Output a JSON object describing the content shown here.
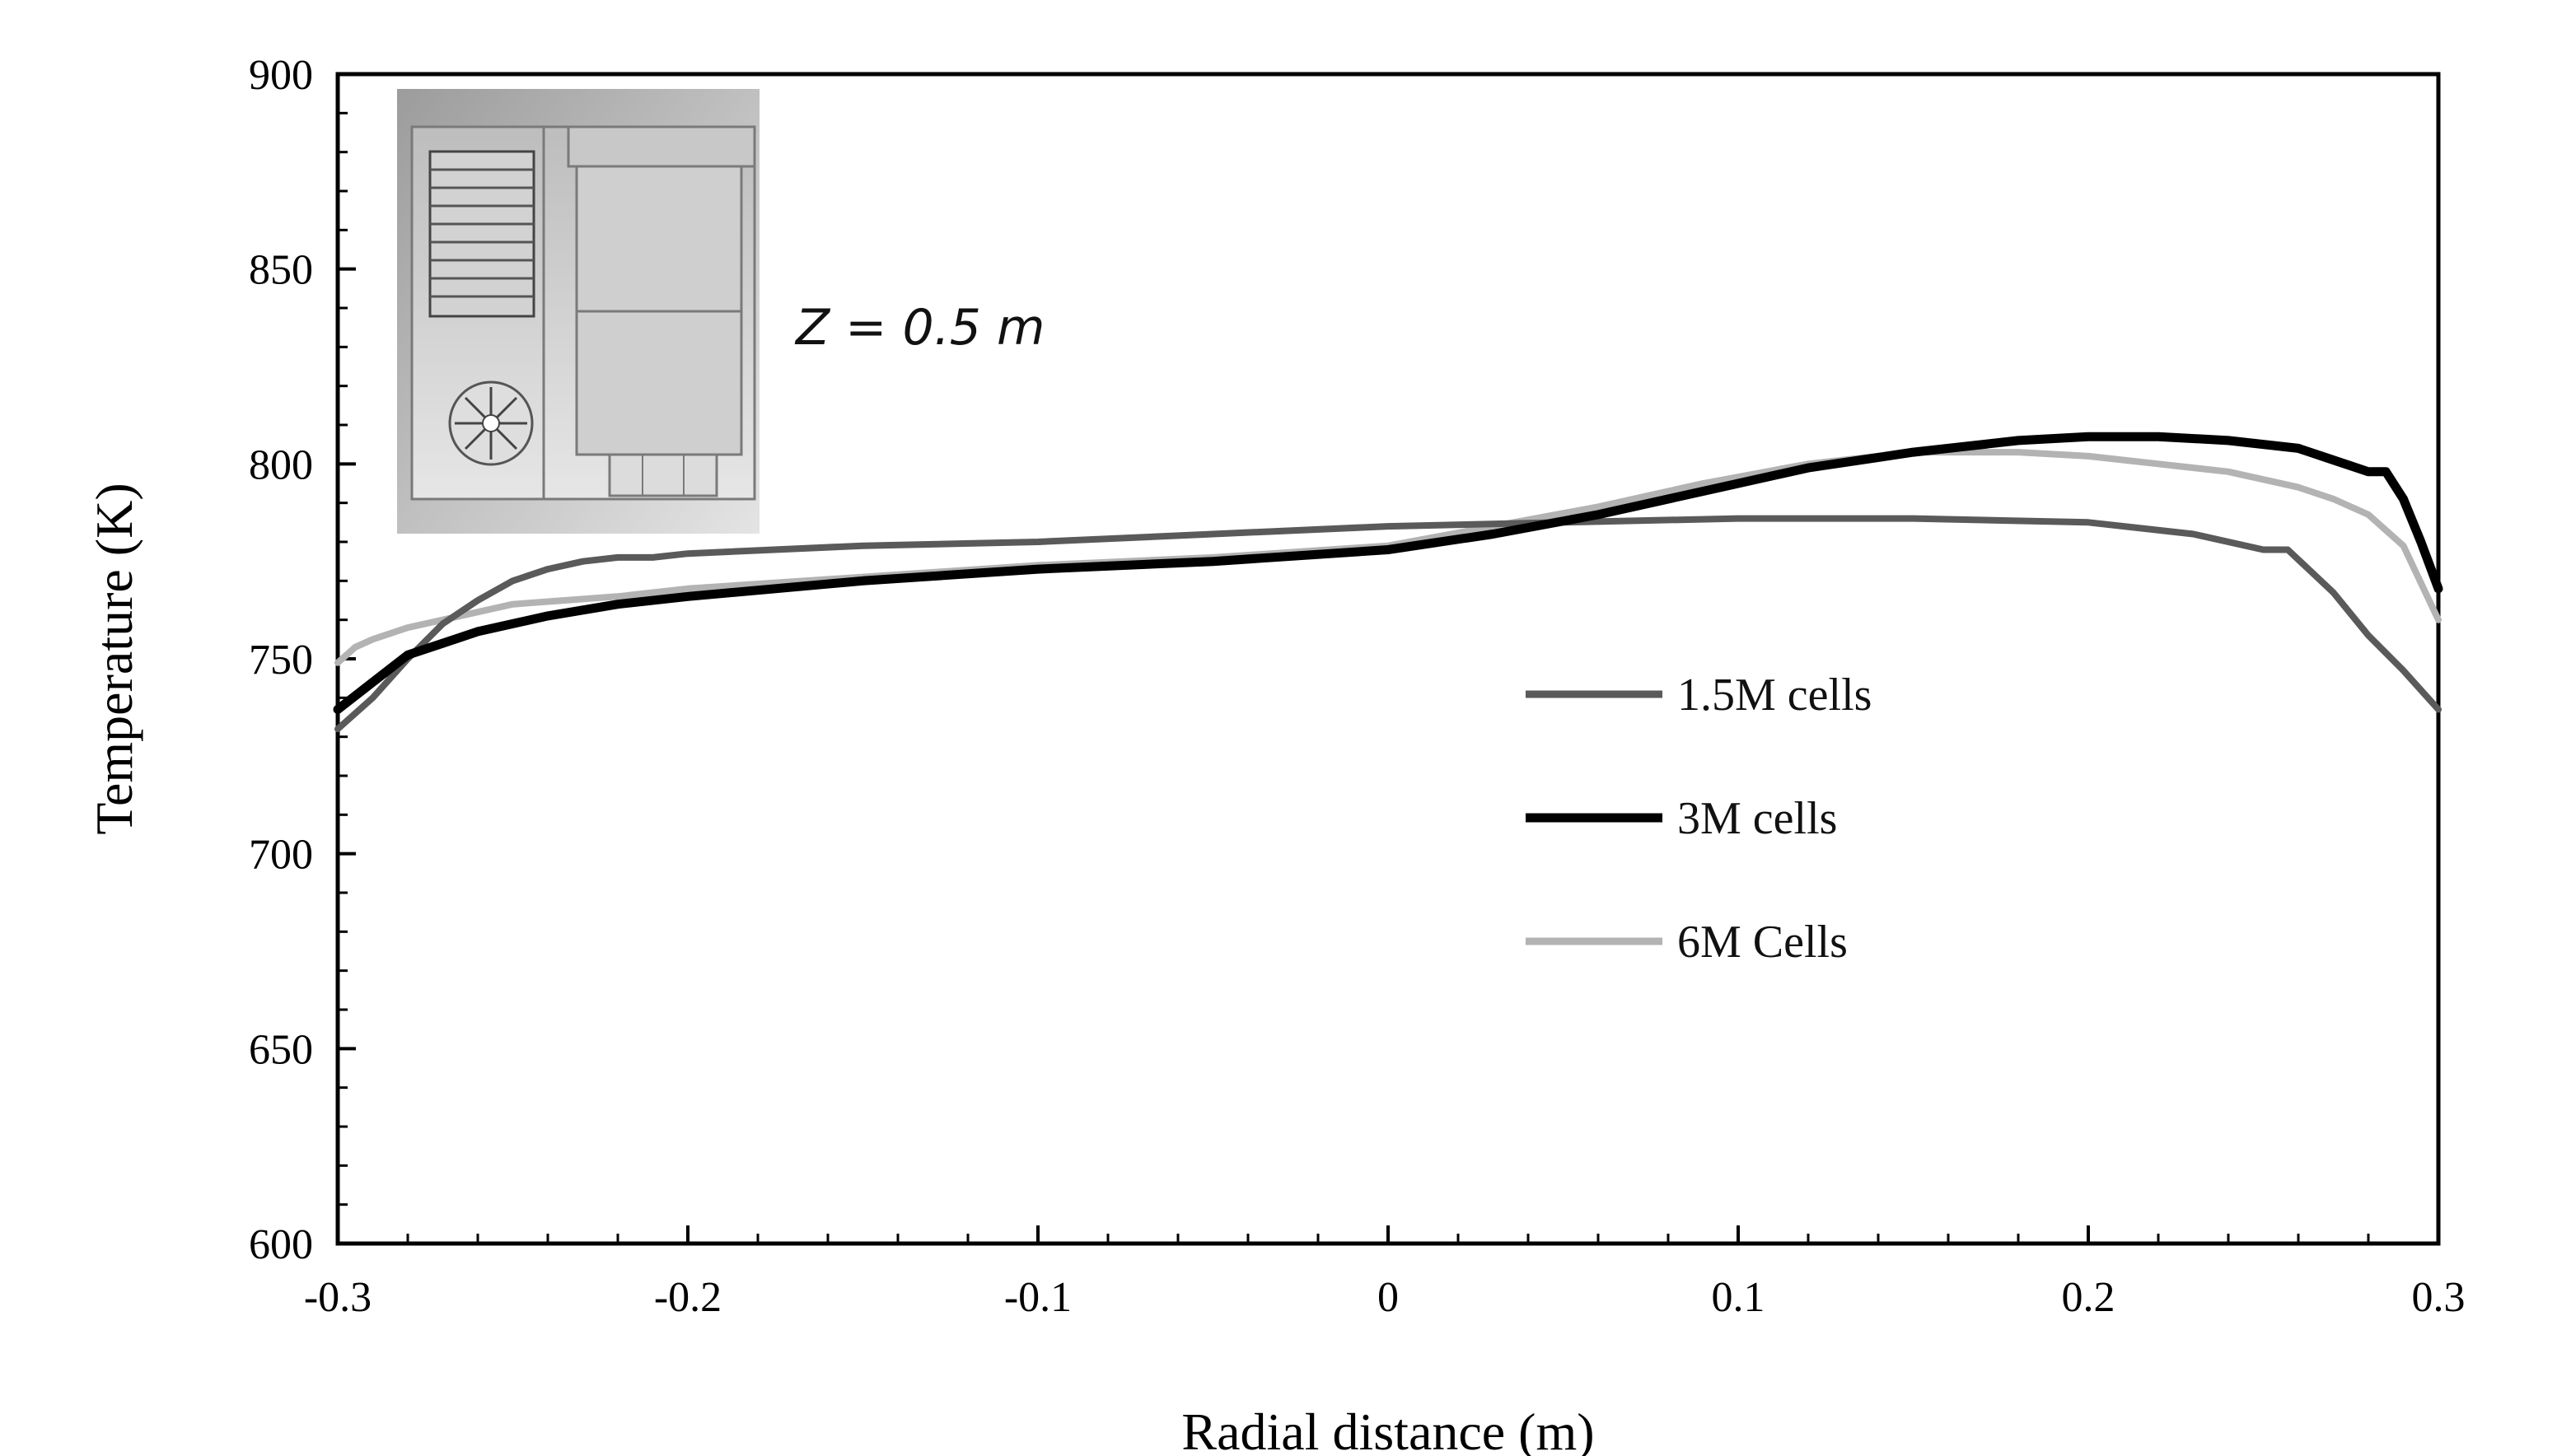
{
  "chart_data": {
    "type": "line",
    "title": "",
    "xlabel": "Radial distance (m)",
    "ylabel": "Temperature (K)",
    "xlim": [
      -0.3,
      0.3
    ],
    "ylim": [
      600,
      900
    ],
    "xticks": [
      -0.3,
      -0.2,
      -0.1,
      0,
      0.1,
      0.2,
      0.3
    ],
    "xtick_labels": [
      "-0.3",
      "-0.2",
      "-0.1",
      "0",
      "0.1",
      "0.2",
      "0.3"
    ],
    "yticks": [
      600,
      650,
      700,
      750,
      800,
      850,
      900
    ],
    "ytick_labels": [
      "600",
      "650",
      "700",
      "750",
      "800",
      "850",
      "900"
    ],
    "grid": false,
    "legend_position": "right-middle",
    "annotation": "Z = 0.5 m",
    "inset": "schematic of furnace geometry (top-left)",
    "series": [
      {
        "name": "1.5M cells",
        "color": "#5a5a5a",
        "x": [
          -0.3,
          -0.29,
          -0.28,
          -0.27,
          -0.26,
          -0.25,
          -0.24,
          -0.23,
          -0.22,
          -0.21,
          -0.2,
          -0.15,
          -0.1,
          -0.05,
          0,
          0.05,
          0.1,
          0.15,
          0.2,
          0.23,
          0.25,
          0.257,
          0.27,
          0.28,
          0.29,
          0.3
        ],
        "y": [
          732,
          740,
          750,
          759,
          765,
          770,
          773,
          775,
          776,
          776,
          777,
          779,
          780,
          782,
          784,
          785,
          786,
          786,
          785,
          782,
          778,
          778,
          767,
          756,
          747,
          737
        ]
      },
      {
        "name": "3M cells",
        "color": "#000000",
        "x": [
          -0.3,
          -0.29,
          -0.28,
          -0.27,
          -0.26,
          -0.25,
          -0.24,
          -0.22,
          -0.2,
          -0.15,
          -0.1,
          -0.05,
          0,
          0.03,
          0.06,
          0.09,
          0.12,
          0.15,
          0.18,
          0.2,
          0.22,
          0.24,
          0.26,
          0.27,
          0.28,
          0.285,
          0.29,
          0.295,
          0.3
        ],
        "y": [
          737,
          744,
          751,
          754,
          757,
          759,
          761,
          764,
          766,
          770,
          773,
          775,
          778,
          782,
          787,
          793,
          799,
          803,
          806,
          807,
          807,
          806,
          804,
          801,
          798,
          798,
          791,
          780,
          768
        ]
      },
      {
        "name": "6M Cells",
        "color": "#b3b3b3",
        "x": [
          -0.3,
          -0.295,
          -0.29,
          -0.28,
          -0.27,
          -0.26,
          -0.25,
          -0.22,
          -0.2,
          -0.15,
          -0.1,
          -0.05,
          0,
          0.03,
          0.06,
          0.09,
          0.12,
          0.15,
          0.18,
          0.2,
          0.22,
          0.24,
          0.26,
          0.27,
          0.28,
          0.29,
          0.3
        ],
        "y": [
          749,
          753,
          755,
          758,
          760,
          762,
          764,
          766,
          768,
          771,
          774,
          776,
          779,
          784,
          789,
          795,
          800,
          803,
          803,
          802,
          800,
          798,
          794,
          791,
          787,
          779,
          760
        ]
      }
    ]
  }
}
